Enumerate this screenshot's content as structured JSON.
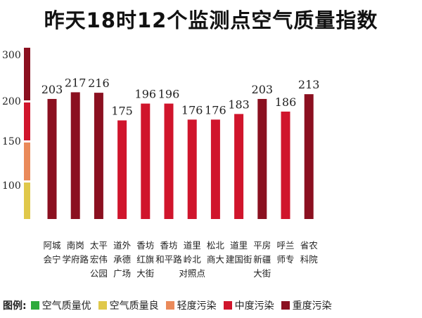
{
  "title": "昨天18时12个监测点空气质量指数",
  "chart_data": {
    "type": "bar",
    "categories": [
      [
        "阿城",
        "会宁"
      ],
      [
        "南岗",
        "学府路"
      ],
      [
        "太平",
        "宏伟",
        "公园"
      ],
      [
        "道外",
        "承德",
        "广场"
      ],
      [
        "香坊",
        "红旗",
        "大街"
      ],
      [
        "香坊",
        "和平路"
      ],
      [
        "道里",
        "岭北",
        "对照点"
      ],
      [
        "松北",
        "商大"
      ],
      [
        "道里",
        "建国街"
      ],
      [
        "平房",
        "新疆",
        "大街"
      ],
      [
        "呼兰",
        "师专"
      ],
      [
        "省农",
        "科院"
      ]
    ],
    "values": [
      203,
      217,
      216,
      175,
      196,
      196,
      176,
      176,
      183,
      203,
      186,
      213
    ],
    "y_ticks": [
      100,
      150,
      200,
      300
    ],
    "colors": {
      "moderate": "#d0152c",
      "heavy": "#8b1020"
    }
  },
  "scale_segments": [
    {
      "from": 50,
      "to": 100,
      "color": "#e0c84a"
    },
    {
      "from": 100,
      "to": 150,
      "color": "#ea8a5a"
    },
    {
      "from": 150,
      "to": 200,
      "color": "#d0152c"
    },
    {
      "from": 200,
      "to": 300,
      "color": "#8b1020"
    }
  ],
  "legend": {
    "title": "图例:",
    "items": [
      {
        "label": "空气质量优",
        "color": "#2eaa3c"
      },
      {
        "label": "空气质量良",
        "color": "#e0c84a"
      },
      {
        "label": "轻度污染",
        "color": "#ea8a5a"
      },
      {
        "label": "中度污染",
        "color": "#d0152c"
      },
      {
        "label": "重度污染",
        "color": "#8b1020"
      }
    ]
  }
}
